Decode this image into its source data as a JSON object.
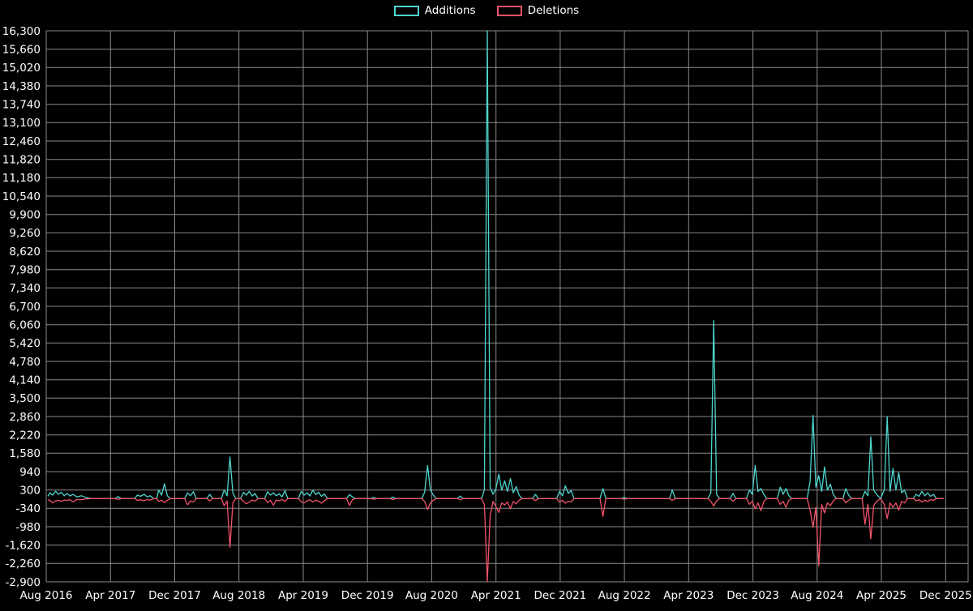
{
  "chart_data": {
    "type": "line",
    "legend_position": "top",
    "background_color": "#000000",
    "grid_color": "#8a8a8a",
    "text_color": "#ffffff",
    "legend": [
      {
        "label": "Additions",
        "color": "#4fd5cf"
      },
      {
        "label": "Deletions",
        "color": "#f0536a"
      }
    ],
    "x_axis": {
      "range": [
        2016.583,
        2026.15
      ],
      "ticks": [
        {
          "label": "Aug 2016",
          "x": 2016.583
        },
        {
          "label": "Apr 2017",
          "x": 2017.25
        },
        {
          "label": "Dec 2017",
          "x": 2017.917
        },
        {
          "label": "Aug 2018",
          "x": 2018.583
        },
        {
          "label": "Apr 2019",
          "x": 2019.25
        },
        {
          "label": "Dec 2019",
          "x": 2019.917
        },
        {
          "label": "Aug 2020",
          "x": 2020.583
        },
        {
          "label": "Apr 2021",
          "x": 2021.25
        },
        {
          "label": "Dec 2021",
          "x": 2021.917
        },
        {
          "label": "Aug 2022",
          "x": 2022.583
        },
        {
          "label": "Apr 2023",
          "x": 2023.25
        },
        {
          "label": "Dec 2023",
          "x": 2023.917
        },
        {
          "label": "Aug 2024",
          "x": 2024.583
        },
        {
          "label": "Apr 2025",
          "x": 2025.25
        },
        {
          "label": "Dec 2025",
          "x": 2025.917
        }
      ]
    },
    "y_axis": {
      "min": -2900,
      "max": 16300,
      "step": 640,
      "tick_labels": [
        "16,300",
        "15,660",
        "15,020",
        "14,380",
        "13,740",
        "13,100",
        "12,460",
        "11,820",
        "11,180",
        "10,540",
        "9,900",
        "9,260",
        "8,620",
        "7,980",
        "7,340",
        "6,700",
        "6,060",
        "5,420",
        "4,780",
        "4,140",
        "3,500",
        "2,860",
        "2,220",
        "1,580",
        "940",
        "300",
        "-340",
        "-980",
        "-1,620",
        "-2,260",
        "-2,900"
      ]
    },
    "series": [
      {
        "name": "Additions",
        "color": "#4fd5cf",
        "value_index": 1
      },
      {
        "name": "Deletions",
        "color": "#f0536a",
        "value_index": 2
      }
    ],
    "points": [
      [
        2016.6,
        80,
        -40
      ],
      [
        2016.62,
        200,
        -60
      ],
      [
        2016.65,
        120,
        -150
      ],
      [
        2016.68,
        260,
        -80
      ],
      [
        2016.71,
        150,
        -60
      ],
      [
        2016.74,
        220,
        -100
      ],
      [
        2016.77,
        100,
        -50
      ],
      [
        2016.8,
        180,
        -60
      ],
      [
        2016.83,
        90,
        -40
      ],
      [
        2016.86,
        150,
        -120
      ],
      [
        2016.9,
        60,
        -30
      ],
      [
        2016.95,
        100,
        -40
      ],
      [
        2017.0,
        30,
        -10
      ],
      [
        2017.05,
        0,
        0
      ],
      [
        2017.3,
        0,
        0
      ],
      [
        2017.33,
        70,
        -30
      ],
      [
        2017.36,
        0,
        0
      ],
      [
        2017.5,
        0,
        0
      ],
      [
        2017.53,
        120,
        -60
      ],
      [
        2017.56,
        80,
        -40
      ],
      [
        2017.6,
        150,
        -80
      ],
      [
        2017.63,
        60,
        -30
      ],
      [
        2017.66,
        100,
        -50
      ],
      [
        2017.7,
        0,
        0
      ],
      [
        2017.73,
        0,
        0
      ],
      [
        2017.75,
        300,
        -100
      ],
      [
        2017.78,
        120,
        -60
      ],
      [
        2017.81,
        520,
        -140
      ],
      [
        2017.84,
        100,
        -60
      ],
      [
        2017.87,
        0,
        0
      ],
      [
        2018.02,
        0,
        0
      ],
      [
        2018.05,
        200,
        -220
      ],
      [
        2018.08,
        100,
        -80
      ],
      [
        2018.11,
        240,
        -120
      ],
      [
        2018.14,
        0,
        0
      ],
      [
        2018.25,
        0,
        0
      ],
      [
        2018.28,
        150,
        -80
      ],
      [
        2018.31,
        0,
        0
      ],
      [
        2018.4,
        0,
        0
      ],
      [
        2018.43,
        300,
        -250
      ],
      [
        2018.46,
        100,
        -80
      ],
      [
        2018.49,
        1450,
        -1700
      ],
      [
        2018.52,
        200,
        -150
      ],
      [
        2018.55,
        0,
        0
      ],
      [
        2018.6,
        0,
        0
      ],
      [
        2018.63,
        220,
        -100
      ],
      [
        2018.66,
        120,
        -180
      ],
      [
        2018.69,
        250,
        -120
      ],
      [
        2018.72,
        90,
        -50
      ],
      [
        2018.75,
        180,
        -90
      ],
      [
        2018.78,
        0,
        0
      ],
      [
        2018.85,
        0,
        0
      ],
      [
        2018.88,
        240,
        -140
      ],
      [
        2018.91,
        120,
        -60
      ],
      [
        2018.94,
        200,
        -230
      ],
      [
        2018.97,
        100,
        -50
      ],
      [
        2019.0,
        170,
        -80
      ],
      [
        2019.03,
        60,
        -30
      ],
      [
        2019.06,
        280,
        -100
      ],
      [
        2019.09,
        0,
        0
      ],
      [
        2019.2,
        0,
        0
      ],
      [
        2019.23,
        250,
        -110
      ],
      [
        2019.26,
        120,
        -150
      ],
      [
        2019.29,
        200,
        -80
      ],
      [
        2019.32,
        90,
        -40
      ],
      [
        2019.35,
        300,
        -120
      ],
      [
        2019.38,
        140,
        -60
      ],
      [
        2019.41,
        220,
        -90
      ],
      [
        2019.44,
        80,
        -160
      ],
      [
        2019.47,
        160,
        -70
      ],
      [
        2019.5,
        0,
        0
      ],
      [
        2019.7,
        0,
        0
      ],
      [
        2019.73,
        140,
        -240
      ],
      [
        2019.76,
        60,
        -40
      ],
      [
        2019.79,
        0,
        0
      ],
      [
        2019.95,
        0,
        0
      ],
      [
        2019.98,
        40,
        -20
      ],
      [
        2020.01,
        0,
        0
      ],
      [
        2020.15,
        0,
        0
      ],
      [
        2020.18,
        50,
        -30
      ],
      [
        2020.21,
        0,
        0
      ],
      [
        2020.48,
        0,
        0
      ],
      [
        2020.51,
        220,
        -100
      ],
      [
        2020.54,
        1150,
        -380
      ],
      [
        2020.57,
        300,
        -150
      ],
      [
        2020.6,
        120,
        -60
      ],
      [
        2020.63,
        0,
        0
      ],
      [
        2020.85,
        0,
        0
      ],
      [
        2020.88,
        90,
        -40
      ],
      [
        2020.91,
        0,
        0
      ],
      [
        2021.1,
        0,
        0
      ],
      [
        2021.13,
        300,
        -200
      ],
      [
        2021.16,
        16300,
        -2900
      ],
      [
        2021.19,
        400,
        -600
      ],
      [
        2021.22,
        150,
        -100
      ],
      [
        2021.25,
        350,
        -280
      ],
      [
        2021.28,
        850,
        -480
      ],
      [
        2021.31,
        300,
        -150
      ],
      [
        2021.34,
        620,
        -220
      ],
      [
        2021.37,
        250,
        -120
      ],
      [
        2021.4,
        700,
        -350
      ],
      [
        2021.43,
        200,
        -100
      ],
      [
        2021.46,
        420,
        -180
      ],
      [
        2021.49,
        120,
        -60
      ],
      [
        2021.52,
        0,
        0
      ],
      [
        2021.63,
        0,
        0
      ],
      [
        2021.66,
        150,
        -70
      ],
      [
        2021.69,
        0,
        0
      ],
      [
        2021.88,
        0,
        0
      ],
      [
        2021.91,
        250,
        -120
      ],
      [
        2021.94,
        100,
        -60
      ],
      [
        2021.97,
        450,
        -160
      ],
      [
        2022.0,
        180,
        -90
      ],
      [
        2022.03,
        280,
        -120
      ],
      [
        2022.06,
        0,
        0
      ],
      [
        2022.33,
        0,
        0
      ],
      [
        2022.36,
        350,
        -620
      ],
      [
        2022.39,
        0,
        0
      ],
      [
        2022.55,
        0,
        0
      ],
      [
        2022.58,
        40,
        -20
      ],
      [
        2022.61,
        0,
        0
      ],
      [
        2023.05,
        0,
        0
      ],
      [
        2023.08,
        300,
        -60
      ],
      [
        2023.11,
        0,
        0
      ],
      [
        2023.45,
        0,
        0
      ],
      [
        2023.48,
        200,
        -100
      ],
      [
        2023.51,
        6200,
        -260
      ],
      [
        2023.54,
        150,
        -80
      ],
      [
        2023.57,
        0,
        0
      ],
      [
        2023.68,
        0,
        0
      ],
      [
        2023.71,
        180,
        -90
      ],
      [
        2023.74,
        0,
        0
      ],
      [
        2023.85,
        0,
        0
      ],
      [
        2023.88,
        300,
        -200
      ],
      [
        2023.91,
        150,
        -100
      ],
      [
        2023.94,
        1150,
        -350
      ],
      [
        2023.97,
        250,
        -150
      ],
      [
        2024.0,
        350,
        -420
      ],
      [
        2024.03,
        150,
        -100
      ],
      [
        2024.06,
        0,
        0
      ],
      [
        2024.17,
        0,
        0
      ],
      [
        2024.2,
        400,
        -200
      ],
      [
        2024.23,
        150,
        -100
      ],
      [
        2024.26,
        350,
        -300
      ],
      [
        2024.29,
        100,
        -60
      ],
      [
        2024.32,
        0,
        0
      ],
      [
        2024.48,
        0,
        0
      ],
      [
        2024.51,
        600,
        -400
      ],
      [
        2024.54,
        2900,
        -1000
      ],
      [
        2024.57,
        400,
        -300
      ],
      [
        2024.6,
        800,
        -2350
      ],
      [
        2024.63,
        250,
        -200
      ],
      [
        2024.66,
        1100,
        -500
      ],
      [
        2024.69,
        300,
        -150
      ],
      [
        2024.72,
        500,
        -250
      ],
      [
        2024.75,
        150,
        -80
      ],
      [
        2024.78,
        0,
        0
      ],
      [
        2024.85,
        0,
        0
      ],
      [
        2024.88,
        350,
        -150
      ],
      [
        2024.91,
        120,
        -60
      ],
      [
        2024.94,
        0,
        0
      ],
      [
        2025.05,
        0,
        0
      ],
      [
        2025.08,
        250,
        -900
      ],
      [
        2025.11,
        100,
        -200
      ],
      [
        2025.14,
        2150,
        -1400
      ],
      [
        2025.17,
        300,
        -250
      ],
      [
        2025.2,
        150,
        -100
      ],
      [
        2025.24,
        0,
        0
      ],
      [
        2025.28,
        300,
        -200
      ],
      [
        2025.31,
        2860,
        -700
      ],
      [
        2025.34,
        250,
        -150
      ],
      [
        2025.37,
        1050,
        -300
      ],
      [
        2025.4,
        300,
        -150
      ],
      [
        2025.43,
        900,
        -400
      ],
      [
        2025.46,
        200,
        -100
      ],
      [
        2025.49,
        300,
        -150
      ],
      [
        2025.52,
        0,
        0
      ],
      [
        2025.58,
        0,
        0
      ],
      [
        2025.61,
        150,
        -80
      ],
      [
        2025.64,
        80,
        -40
      ],
      [
        2025.67,
        250,
        -120
      ],
      [
        2025.7,
        100,
        -50
      ],
      [
        2025.73,
        200,
        -100
      ],
      [
        2025.76,
        80,
        -40
      ],
      [
        2025.79,
        150,
        -60
      ],
      [
        2025.82,
        0,
        0
      ],
      [
        2025.9,
        0,
        0
      ]
    ]
  }
}
